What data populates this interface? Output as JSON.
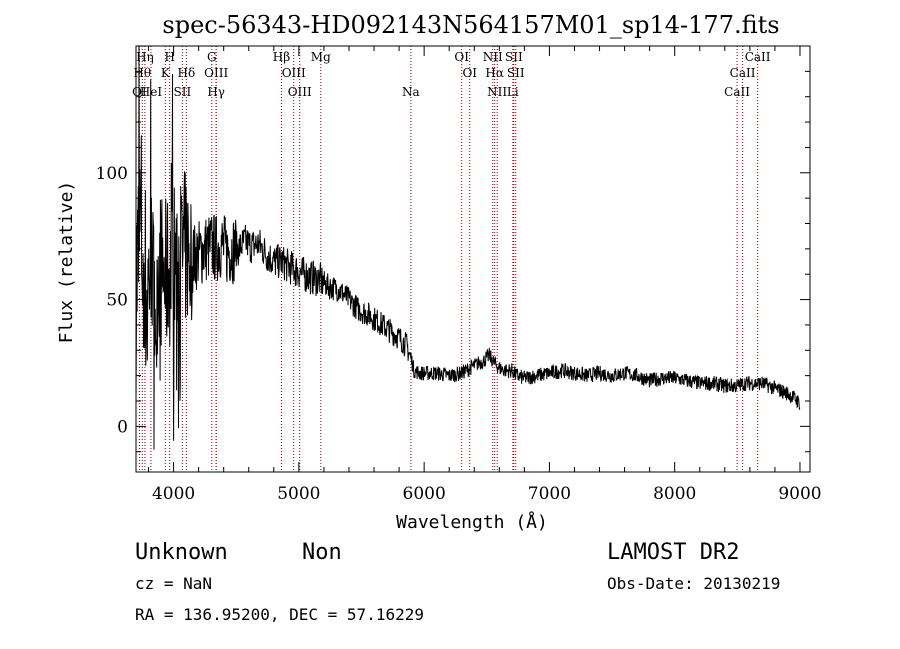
{
  "chart_data": {
    "type": "line",
    "title": "spec-56343-HD092143N564157M01_sp14-177.fits",
    "xlabel": "Wavelength (Å)",
    "ylabel": "Flux (relative)",
    "xlim": [
      3700,
      9080
    ],
    "ylim": [
      -18,
      150
    ],
    "x_ticks": [
      4000,
      5000,
      6000,
      7000,
      8000,
      9000
    ],
    "y_ticks": [
      0,
      50,
      100
    ],
    "series": [
      {
        "name": "spectrum",
        "x": [
          3700,
          3740,
          3760,
          3790,
          3820,
          3850,
          3880,
          3910,
          3940,
          3970,
          4000,
          4030,
          4060,
          4100,
          4150,
          4200,
          4250,
          4300,
          4340,
          4380,
          4420,
          4470,
          4520,
          4570,
          4620,
          4680,
          4740,
          4800,
          4860,
          4920,
          5000,
          5080,
          5160,
          5240,
          5320,
          5400,
          5480,
          5560,
          5640,
          5720,
          5800,
          5860,
          5900,
          5920,
          5960,
          6020,
          6100,
          6200,
          6300,
          6400,
          6480,
          6520,
          6560,
          6600,
          6650,
          6700,
          6740,
          6800,
          6900,
          7000,
          7100,
          7200,
          7300,
          7400,
          7500,
          7600,
          7700,
          7800,
          7900,
          8000,
          8100,
          8200,
          8300,
          8400,
          8500,
          8560,
          8640,
          8700,
          8800,
          8900,
          8960,
          9000
        ],
        "y": [
          55,
          80,
          60,
          50,
          70,
          45,
          65,
          60,
          58,
          62,
          66,
          64,
          68,
          70,
          66,
          68,
          70,
          71,
          70,
          72,
          69,
          70,
          70,
          73,
          71,
          72,
          68,
          65,
          65,
          63,
          61,
          59,
          58,
          55,
          54,
          50,
          46,
          44,
          41,
          38,
          35,
          32,
          26,
          22,
          21,
          21,
          21,
          20,
          21,
          24,
          26,
          28,
          25,
          23,
          22,
          22,
          20,
          19,
          20,
          21,
          22,
          21,
          20,
          21,
          20,
          21,
          20,
          18,
          19,
          19,
          18,
          17,
          17,
          16,
          16,
          17,
          17,
          17,
          15,
          13,
          11,
          9
        ]
      }
    ],
    "spectral_lines": [
      {
        "name": "OI",
        "x": 3727,
        "row": 3
      },
      {
        "name": "Hθ",
        "x": 3750,
        "row": 2
      },
      {
        "name": "Hη",
        "x": 3771,
        "row": 1
      },
      {
        "name": "HeI",
        "x": 3819,
        "row": 3
      },
      {
        "name": "K",
        "x": 3934,
        "row": 2
      },
      {
        "name": "H",
        "x": 3969,
        "row": 1
      },
      {
        "name": "SII",
        "x": 4070,
        "row": 3
      },
      {
        "name": "Hδ",
        "x": 4102,
        "row": 2
      },
      {
        "name": "G",
        "x": 4305,
        "row": 1
      },
      {
        "name": "OIII",
        "x": 4340,
        "row": 2
      },
      {
        "name": "Hγ",
        "x": 4340,
        "row": 3
      },
      {
        "name": "Hβ",
        "x": 4861,
        "row": 1
      },
      {
        "name": "OIII",
        "x": 4959,
        "row": 2
      },
      {
        "name": "OIII",
        "x": 5007,
        "row": 3
      },
      {
        "name": "Mg",
        "x": 5175,
        "row": 1
      },
      {
        "name": "Na",
        "x": 5894,
        "row": 3
      },
      {
        "name": "OI",
        "x": 6300,
        "row": 1
      },
      {
        "name": "OI",
        "x": 6364,
        "row": 2
      },
      {
        "name": "NII",
        "x": 6548,
        "row": 1
      },
      {
        "name": "Hα",
        "x": 6563,
        "row": 2
      },
      {
        "name": "NII",
        "x": 6583,
        "row": 3
      },
      {
        "name": "SII",
        "x": 6716,
        "row": 1
      },
      {
        "name": "SII",
        "x": 6731,
        "row": 2
      },
      {
        "name": "Li",
        "x": 6708,
        "row": 3
      },
      {
        "name": "CaII",
        "x": 8662,
        "row": 1
      },
      {
        "name": "CaII",
        "x": 8542,
        "row": 2
      },
      {
        "name": "CaII",
        "x": 8498,
        "row": 3
      }
    ]
  },
  "info": {
    "class": "Unknown",
    "subclass": "Non",
    "cz": "cz = NaN",
    "radec": "RA = 136.95200, DEC =  57.16229",
    "survey": "LAMOST DR2",
    "obs_date": "Obs-Date: 20130219"
  },
  "colors": {
    "line": "#8b0000",
    "spectrum": "#000000"
  }
}
